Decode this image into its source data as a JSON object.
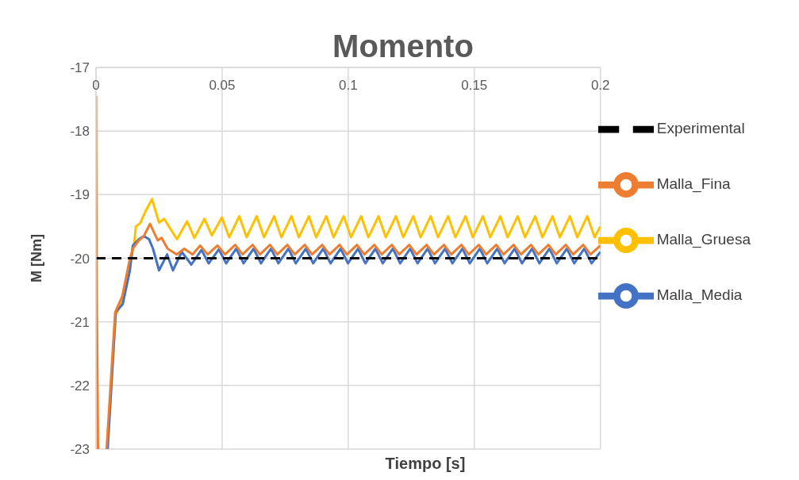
{
  "chart_data": {
    "type": "line",
    "title": "Momento",
    "xlabel": "Tiempo [s]",
    "ylabel": "M [Nm]",
    "xlim": [
      0,
      0.2
    ],
    "xticks": [
      0,
      0.05,
      0.1,
      0.15,
      0.2
    ],
    "ylim": [
      -23,
      -17
    ],
    "yticks": [
      -17,
      -18,
      -19,
      -20,
      -21,
      -22,
      -23
    ],
    "grid": true,
    "legend": "top right",
    "line_style": "solid",
    "marker": "none",
    "series": [
      {
        "name": "Malla_Gruesa",
        "color": "#ffc000",
        "x": [
          0.0046,
          0.0078,
          0.0106,
          0.0134,
          0.0152,
          0.0158,
          0.0175,
          0.0194,
          0.0222,
          0.025,
          0.027,
          0.0321,
          0.0361,
          0.039,
          0.043,
          0.0459,
          0.0499,
          0.0528,
          0.0568,
          0.0597,
          0.0637,
          0.0666,
          0.0706,
          0.0735,
          0.0775,
          0.0804,
          0.0844,
          0.0873,
          0.0913,
          0.0942,
          0.0982,
          0.1011,
          0.1051,
          0.108,
          0.112,
          0.1149,
          0.1189,
          0.1218,
          0.1258,
          0.1287,
          0.1327,
          0.1356,
          0.1396,
          0.1425,
          0.1465,
          0.1494,
          0.1534,
          0.1563,
          0.1603,
          0.1632,
          0.1672,
          0.1701,
          0.1741,
          0.177,
          0.181,
          0.1839,
          0.1879,
          0.1908,
          0.1948,
          0.1977,
          0.2
        ],
        "values": [
          -23,
          -20.9,
          -20.65,
          -20.1,
          -19.75,
          -19.5,
          -19.45,
          -19.28,
          -19.07,
          -19.44,
          -19.38,
          -19.7,
          -19.42,
          -19.68,
          -19.38,
          -19.64,
          -19.36,
          -19.67,
          -19.34,
          -19.67,
          -19.34,
          -19.67,
          -19.34,
          -19.67,
          -19.34,
          -19.67,
          -19.34,
          -19.67,
          -19.34,
          -19.67,
          -19.34,
          -19.67,
          -19.34,
          -19.67,
          -19.34,
          -19.67,
          -19.34,
          -19.67,
          -19.34,
          -19.67,
          -19.34,
          -19.67,
          -19.34,
          -19.67,
          -19.34,
          -19.67,
          -19.34,
          -19.67,
          -19.34,
          -19.67,
          -19.34,
          -19.67,
          -19.34,
          -19.67,
          -19.34,
          -19.67,
          -19.34,
          -19.67,
          -19.34,
          -19.67,
          -19.5
        ]
      },
      {
        "name": "Malla_Media",
        "color": "#4472c4",
        "x": [
          0.0046,
          0.0078,
          0.0106,
          0.0134,
          0.0146,
          0.017,
          0.019,
          0.021,
          0.0226,
          0.025,
          0.0282,
          0.0305,
          0.034,
          0.0378,
          0.0418,
          0.0447,
          0.0487,
          0.0516,
          0.0556,
          0.0585,
          0.0625,
          0.0654,
          0.0694,
          0.0723,
          0.0763,
          0.0792,
          0.0832,
          0.0861,
          0.0901,
          0.093,
          0.097,
          0.0999,
          0.1039,
          0.1068,
          0.1108,
          0.1137,
          0.1177,
          0.1206,
          0.1246,
          0.1275,
          0.1315,
          0.1344,
          0.1384,
          0.1413,
          0.1453,
          0.1482,
          0.1522,
          0.1551,
          0.1591,
          0.162,
          0.166,
          0.1689,
          0.1729,
          0.1758,
          0.1798,
          0.1827,
          0.1867,
          0.1896,
          0.1936,
          0.1965,
          0.2
        ],
        "values": [
          -23,
          -20.85,
          -20.72,
          -20.2,
          -19.8,
          -19.7,
          -19.65,
          -19.7,
          -19.85,
          -20.19,
          -19.94,
          -20.19,
          -19.9,
          -20.1,
          -19.87,
          -20.08,
          -19.86,
          -20.08,
          -19.85,
          -20.08,
          -19.85,
          -20.08,
          -19.85,
          -20.08,
          -19.85,
          -20.08,
          -19.85,
          -20.08,
          -19.85,
          -20.08,
          -19.85,
          -20.08,
          -19.85,
          -20.08,
          -19.85,
          -20.08,
          -19.85,
          -20.08,
          -19.85,
          -20.08,
          -19.85,
          -20.08,
          -19.85,
          -20.08,
          -19.85,
          -20.08,
          -19.85,
          -20.08,
          -19.85,
          -20.08,
          -19.85,
          -20.08,
          -19.85,
          -20.08,
          -19.85,
          -20.08,
          -19.85,
          -20.08,
          -19.85,
          -20.08,
          -19.9
        ]
      },
      {
        "name": "Malla_Fina",
        "color": "#ed7d31",
        "x": [
          0,
          0.0002,
          0.0008,
          0.0025,
          0.0042,
          0.0076,
          0.0104,
          0.0132,
          0.0146,
          0.017,
          0.019,
          0.0214,
          0.0245,
          0.026,
          0.0284,
          0.032,
          0.035,
          0.0383,
          0.0413,
          0.0443,
          0.0482,
          0.0512,
          0.0552,
          0.0581,
          0.0621,
          0.065,
          0.069,
          0.0719,
          0.0759,
          0.0788,
          0.0828,
          0.0857,
          0.0897,
          0.0926,
          0.0966,
          0.0995,
          0.1035,
          0.1064,
          0.1104,
          0.1133,
          0.1173,
          0.1202,
          0.1242,
          0.1271,
          0.1311,
          0.134,
          0.138,
          0.1409,
          0.1449,
          0.1478,
          0.1518,
          0.1547,
          0.1587,
          0.1616,
          0.1656,
          0.1685,
          0.1725,
          0.1754,
          0.1794,
          0.1823,
          0.1863,
          0.1892,
          0.1932,
          0.1961,
          0.2
        ],
        "values": [
          -17.45,
          -20.1,
          -23,
          null,
          -23,
          -20.85,
          -20.6,
          -20.05,
          -19.85,
          -19.72,
          -19.65,
          -19.46,
          -19.72,
          -19.68,
          -19.85,
          -19.94,
          -19.85,
          -19.94,
          -19.8,
          -19.94,
          -19.8,
          -19.94,
          -19.79,
          -19.94,
          -19.79,
          -19.94,
          -19.79,
          -19.94,
          -19.79,
          -19.94,
          -19.79,
          -19.94,
          -19.79,
          -19.94,
          -19.79,
          -19.94,
          -19.79,
          -19.94,
          -19.79,
          -19.94,
          -19.79,
          -19.94,
          -19.79,
          -19.94,
          -19.79,
          -19.94,
          -19.79,
          -19.94,
          -19.79,
          -19.94,
          -19.79,
          -19.94,
          -19.79,
          -19.94,
          -19.79,
          -19.94,
          -19.79,
          -19.94,
          -19.79,
          -19.94,
          -19.79,
          -19.94,
          -19.79,
          -19.94,
          -19.8
        ]
      },
      {
        "name": "Experimental",
        "color": "#000000",
        "line_style": "dashed",
        "x": [
          0,
          0.2
        ],
        "values": [
          -20,
          -20
        ]
      }
    ]
  }
}
